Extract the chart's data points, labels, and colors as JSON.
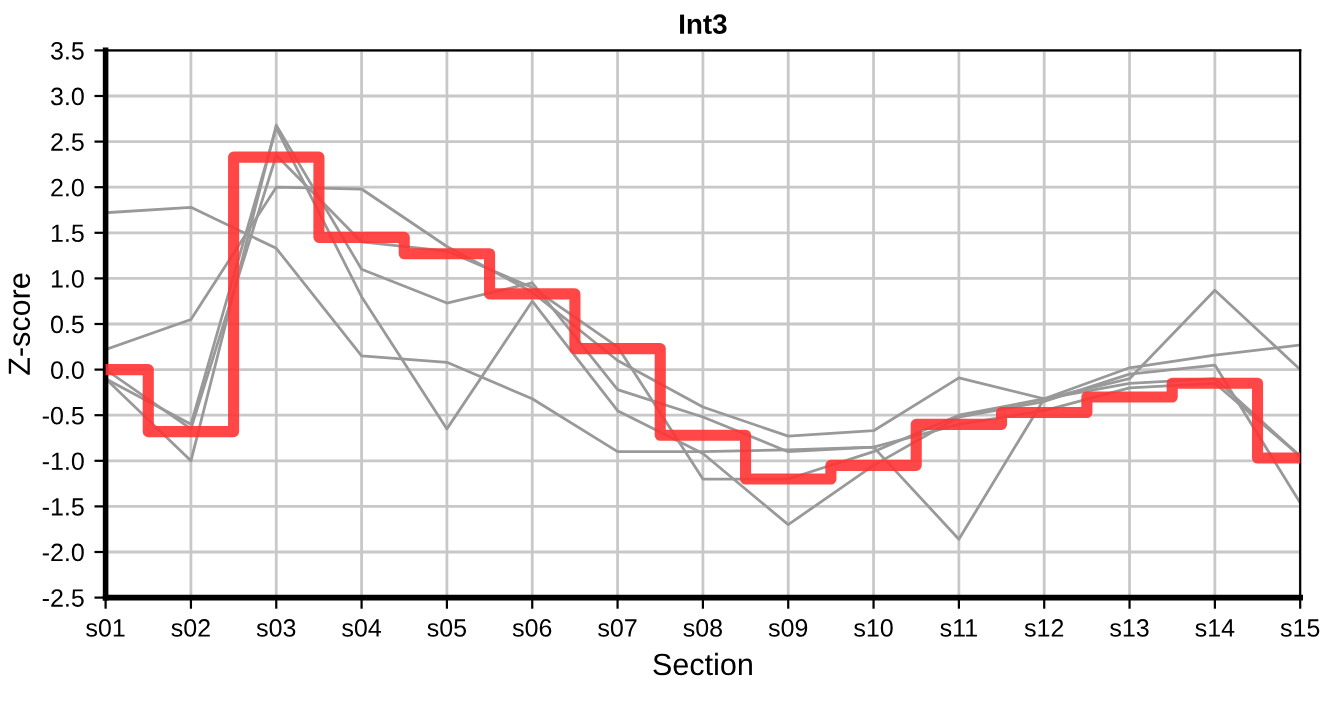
{
  "chart_data": {
    "type": "line",
    "title": "Int3",
    "xlabel": "Section",
    "ylabel": "Z-score",
    "categories": [
      "s01",
      "s02",
      "s03",
      "s04",
      "s05",
      "s06",
      "s07",
      "s08",
      "s09",
      "s10",
      "s11",
      "s12",
      "s13",
      "s14",
      "s15"
    ],
    "ylim": [
      -2.5,
      3.5
    ],
    "yticks": [
      -2.5,
      {
        "value": -2,
        "label": "-2.0"
      },
      -1.5,
      {
        "value": -1,
        "label": "-1.0"
      },
      -0.5,
      {
        "value": 0,
        "label": "0.0"
      },
      0.5,
      {
        "value": 1,
        "label": "1.0"
      },
      1.5,
      {
        "value": 2,
        "label": "2.0"
      },
      2.5,
      {
        "value": 3,
        "label": "3.0"
      },
      3.5
    ],
    "grid": true,
    "line_style": "solid",
    "marker": "none",
    "series": [
      {
        "color": "#999999",
        "values": [
          1.72,
          1.78,
          1.33,
          0.15,
          0.08,
          -0.32,
          -0.9,
          -0.9,
          -0.88,
          -0.85,
          -0.6,
          -0.45,
          -0.2,
          -0.15,
          -0.95
        ]
      },
      {
        "color": "#999999",
        "values": [
          0.22,
          0.55,
          2.0,
          1.98,
          1.35,
          0.85,
          0.1,
          -0.41,
          -0.73,
          -0.67,
          -0.09,
          -0.32,
          0.02,
          0.16,
          0.27
        ]
      },
      {
        "color": "#999999",
        "values": [
          -0.1,
          -1.0,
          2.68,
          1.1,
          0.73,
          0.95,
          -0.22,
          -0.52,
          -0.9,
          -0.85,
          -1.86,
          -0.32,
          -0.1,
          0.87,
          0.0
        ]
      },
      {
        "color": "#999999",
        "values": [
          -0.1,
          -0.6,
          2.65,
          0.8,
          -0.65,
          0.75,
          -0.45,
          -0.92,
          -1.7,
          -1.05,
          -0.52,
          -0.35,
          -0.05,
          0.05,
          -1.46
        ]
      },
      {
        "color": "#999999",
        "values": [
          0.0,
          -0.65,
          2.35,
          1.4,
          1.3,
          0.9,
          0.25,
          -1.2,
          -1.2,
          -0.9,
          -0.5,
          -0.32,
          -0.15,
          -0.1,
          -0.95
        ]
      },
      {
        "type": "step",
        "color": "#ff3333",
        "values": [
          0.0,
          -0.68,
          2.33,
          1.45,
          1.27,
          0.83,
          0.23,
          -0.72,
          -1.2,
          -1.05,
          -0.6,
          -0.47,
          -0.3,
          -0.15,
          -0.97
        ]
      }
    ]
  }
}
